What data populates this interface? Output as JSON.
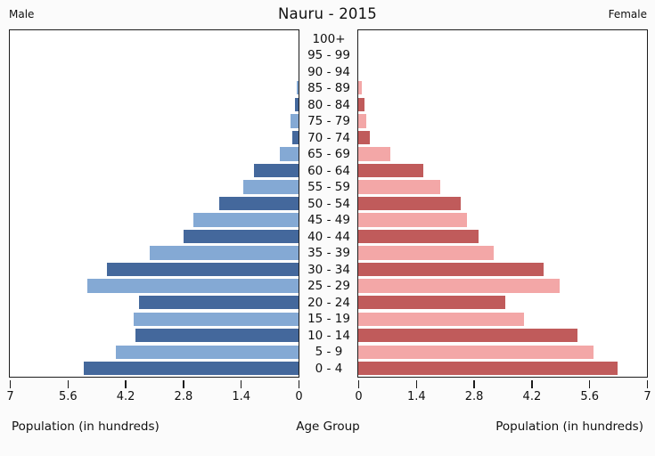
{
  "header": {
    "title": "Nauru - 2015",
    "male_label": "Male",
    "female_label": "Female"
  },
  "axis": {
    "left_title": "Population (in hundreds)",
    "center_title": "Age Group",
    "right_title": "Population (in hundreds)",
    "left_tick_labels": [
      "7",
      "5.6",
      "4.2",
      "2.8",
      "1.4",
      "0"
    ],
    "right_tick_labels": [
      "0",
      "1.4",
      "2.8",
      "4.2",
      "5.6",
      "7"
    ]
  },
  "colors": {
    "male_dark": "#44689c",
    "male_light": "#84a9d4",
    "female_dark": "#c05b5b",
    "female_light": "#f3a7a7",
    "axis_line": "#1c1c1c",
    "plot_background": "#ffffff"
  },
  "chart_data": {
    "type": "bar",
    "subtype": "population-pyramid",
    "title": "Nauru - 2015",
    "unit": "hundreds of people",
    "xlabel": "Population (in hundreds)",
    "center_label": "Age Group",
    "xlim": [
      0,
      7
    ],
    "x_ticks": [
      0,
      1.4,
      2.8,
      4.2,
      5.6,
      7
    ],
    "grid": false,
    "categories_top_to_bottom": [
      "100+",
      "95 - 99",
      "90 - 94",
      "85 - 89",
      "80 - 84",
      "75 - 79",
      "70 - 74",
      "65 - 69",
      "60 - 64",
      "55 - 59",
      "50 - 54",
      "45 - 49",
      "40 - 44",
      "35 - 39",
      "30 - 34",
      "25 - 29",
      "20 - 24",
      "15 - 19",
      "10 - 14",
      "5 - 9",
      "0 - 4"
    ],
    "series": [
      {
        "name": "Male",
        "side": "left",
        "values_top_to_bottom": [
          0,
          0,
          0,
          0.04,
          0.08,
          0.2,
          0.16,
          0.45,
          1.07,
          1.35,
          1.92,
          2.56,
          2.78,
          3.6,
          4.65,
          5.12,
          3.86,
          3.99,
          3.95,
          4.42,
          5.21
        ]
      },
      {
        "name": "Female",
        "side": "right",
        "values_top_to_bottom": [
          0,
          0,
          0,
          0.09,
          0.16,
          0.19,
          0.29,
          0.77,
          1.57,
          1.98,
          2.49,
          2.63,
          2.91,
          3.29,
          4.49,
          4.88,
          3.56,
          4.01,
          5.31,
          5.7,
          6.29
        ]
      }
    ]
  }
}
